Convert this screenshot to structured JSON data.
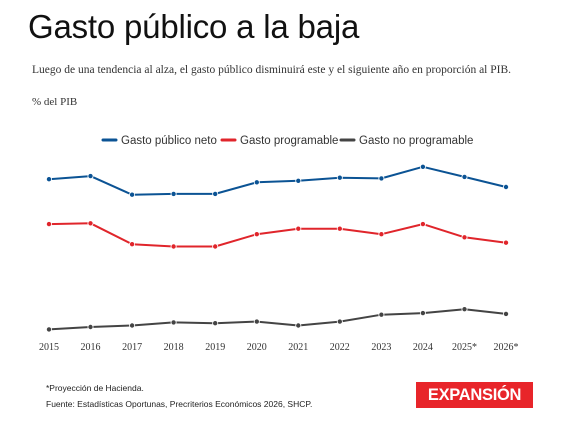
{
  "header": {
    "title": "Gasto público a la baja",
    "subtitle": "Luego de una tendencia al alza, el gasto público disminuirá este y el siguiente año en proporción al PIB.",
    "unit": "% del PIB"
  },
  "footer": {
    "note": "*Proyección de Hacienda.",
    "source": "Fuente: Estadísticas Oportunas, Precriterios Económicos 2026, SHCP.",
    "logo_text": "EXPANSIÓN",
    "logo_color": "#e8252a"
  },
  "chart_data": {
    "type": "line",
    "categories": [
      "2015",
      "2016",
      "2017",
      "2018",
      "2019",
      "2020",
      "2021",
      "2022",
      "2023",
      "2024",
      "2025*",
      "2026*"
    ],
    "series": [
      {
        "name": "Gasto público neto",
        "color": "#0b5394",
        "values": [
          26.5,
          26.7,
          25.5,
          25.55,
          25.55,
          26.3,
          26.4,
          26.6,
          26.55,
          27.3,
          26.65,
          26.0
        ]
      },
      {
        "name": "Gasto programable",
        "color": "#e0252b",
        "values": [
          23.6,
          23.65,
          22.3,
          22.15,
          22.15,
          22.95,
          23.3,
          23.3,
          22.95,
          23.6,
          22.75,
          22.4
        ]
      },
      {
        "name": "Gasto no programable",
        "color": "#444444",
        "values": [
          16.8,
          16.95,
          17.05,
          17.25,
          17.2,
          17.3,
          17.05,
          17.3,
          17.75,
          17.85,
          18.1,
          17.8
        ]
      }
    ],
    "ylim": [
      16.5,
      28.0
    ],
    "grid": false,
    "legend_position": "top-center",
    "xlabel": "",
    "ylabel": "% del PIB"
  }
}
